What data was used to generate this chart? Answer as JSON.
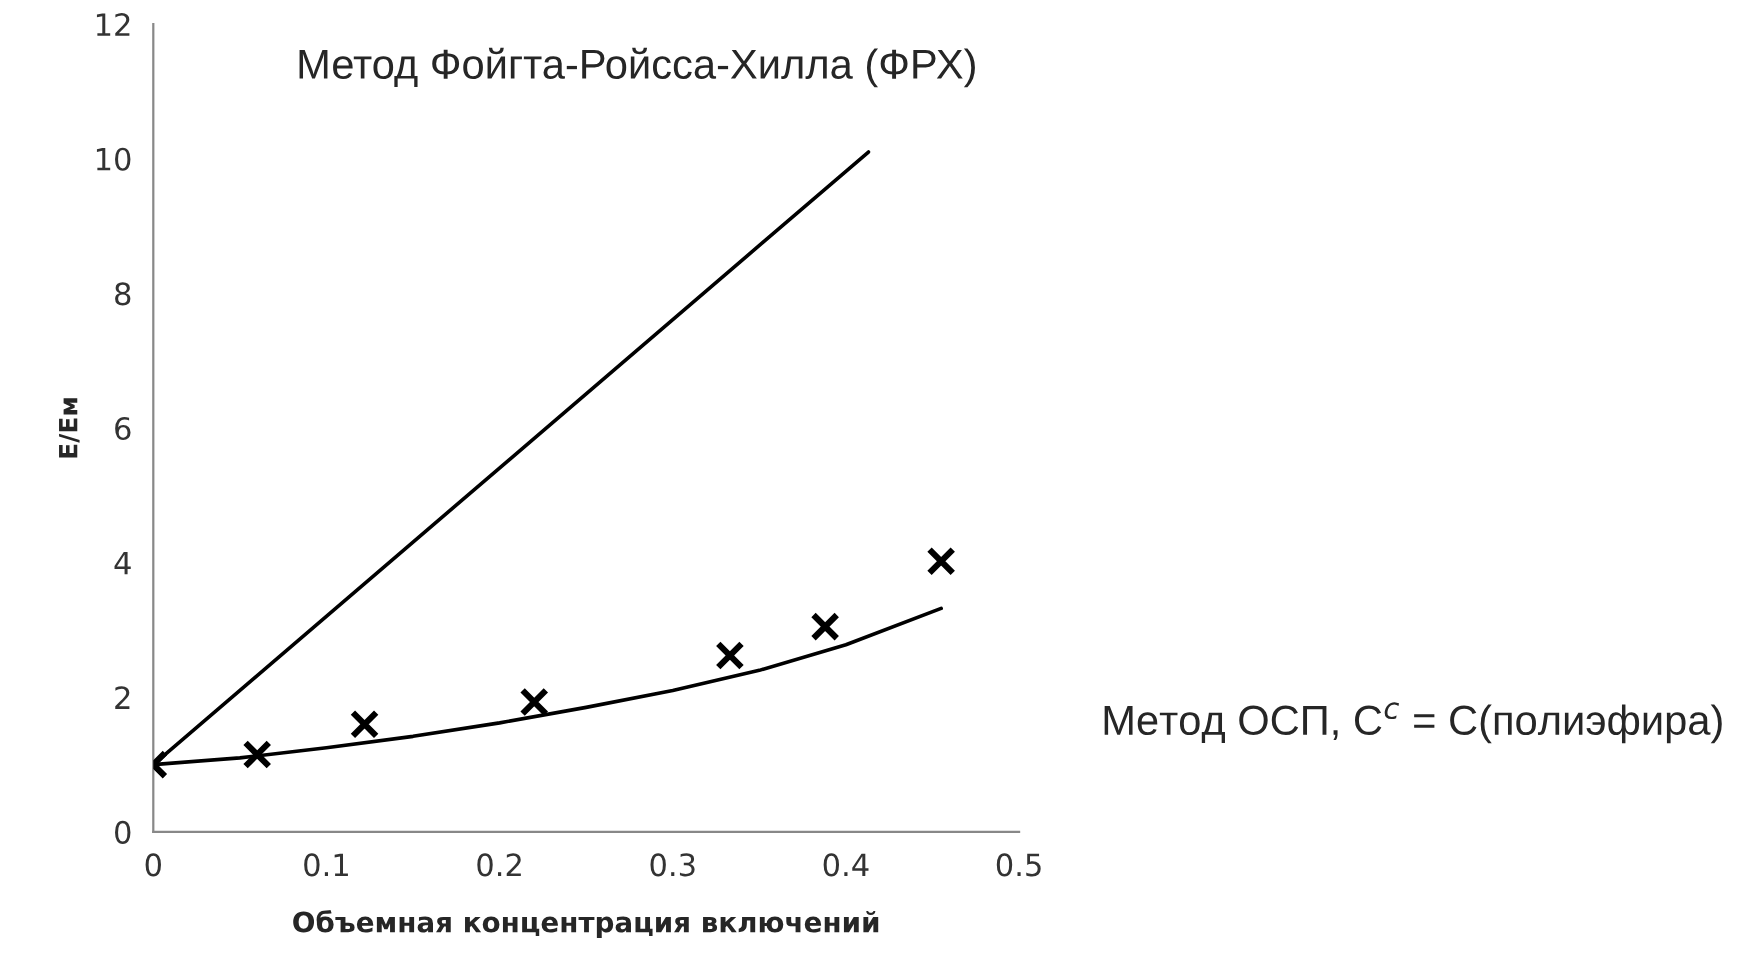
{
  "chart_data": {
    "type": "line",
    "xlabel": "Объемная концентрация включений",
    "ylabel": "E/Eм",
    "annotations": [
      "Метод Фойгта-Ройсса-Хилла (ФРХ)",
      "Метод ОСП, C$^{c}$ = C(полиэфира)"
    ],
    "series": [
      {
        "color": "#000000",
        "x": [
          0,
          0.413
        ],
        "values": [
          1,
          10.1
        ]
      },
      {
        "color": "#000000",
        "x": [
          0,
          0.05,
          0.1,
          0.15,
          0.2,
          0.25,
          0.3,
          0.35,
          0.4,
          0.455
        ],
        "values": [
          1,
          1.1,
          1.25,
          1.42,
          1.62,
          1.85,
          2.1,
          2.4,
          2.78,
          3.32
        ]
      },
      {
        "type": "scatter",
        "color": "#000000",
        "marker": "cross",
        "x": [
          0,
          0.06,
          0.122,
          0.22,
          0.333,
          0.388,
          0.455
        ],
        "values": [
          1,
          1.15,
          1.6,
          1.93,
          2.62,
          3.05,
          4.02
        ]
      }
    ],
    "xlim": [
      0,
      0.5
    ],
    "xticks": [
      0,
      0.1,
      0.2,
      0.3,
      0.4,
      0.5
    ],
    "ylim": [
      0,
      12
    ],
    "yticks": [
      0,
      2,
      4,
      6,
      8,
      10,
      12
    ],
    "grid": false,
    "legend": false
  }
}
